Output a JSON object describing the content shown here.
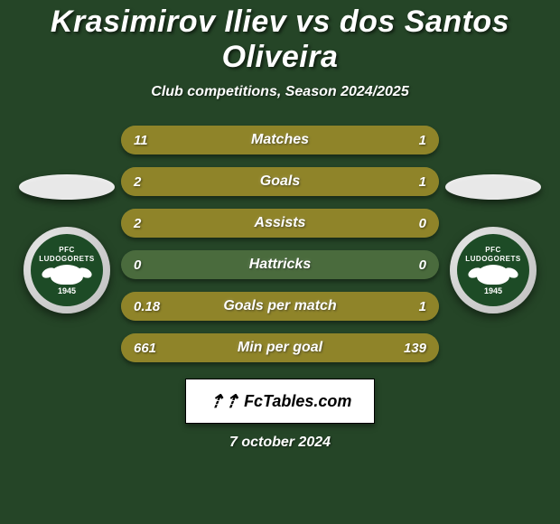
{
  "title": "Krasimirov Iliev vs dos Santos Oliveira",
  "subtitle": "Club competitions, Season 2024/2025",
  "background_color": "#254527",
  "player_left": {
    "ellipse_color": "#e8e8e8",
    "club_name": "LUDOGORETS",
    "club_prefix": "PFC",
    "club_year": "1945"
  },
  "player_right": {
    "ellipse_color": "#e8e8e8",
    "club_name": "LUDOGORETS",
    "club_prefix": "PFC",
    "club_year": "1945"
  },
  "bar_colors": {
    "left": "#8f8429",
    "right": "#8f8429",
    "track": "#4a6b3d"
  },
  "stats": [
    {
      "label": "Matches",
      "left_val": "11",
      "right_val": "1",
      "left_pct": 92,
      "right_pct": 8
    },
    {
      "label": "Goals",
      "left_val": "2",
      "right_val": "1",
      "left_pct": 67,
      "right_pct": 33
    },
    {
      "label": "Assists",
      "left_val": "2",
      "right_val": "0",
      "left_pct": 100,
      "right_pct": 0
    },
    {
      "label": "Hattricks",
      "left_val": "0",
      "right_val": "0",
      "left_pct": 0,
      "right_pct": 0
    },
    {
      "label": "Goals per match",
      "left_val": "0.18",
      "right_val": "1",
      "left_pct": 15,
      "right_pct": 85
    },
    {
      "label": "Min per goal",
      "left_val": "661",
      "right_val": "139",
      "left_pct": 83,
      "right_pct": 17
    }
  ],
  "footer": {
    "brand": "FcTables.com",
    "date": "7 october 2024"
  }
}
